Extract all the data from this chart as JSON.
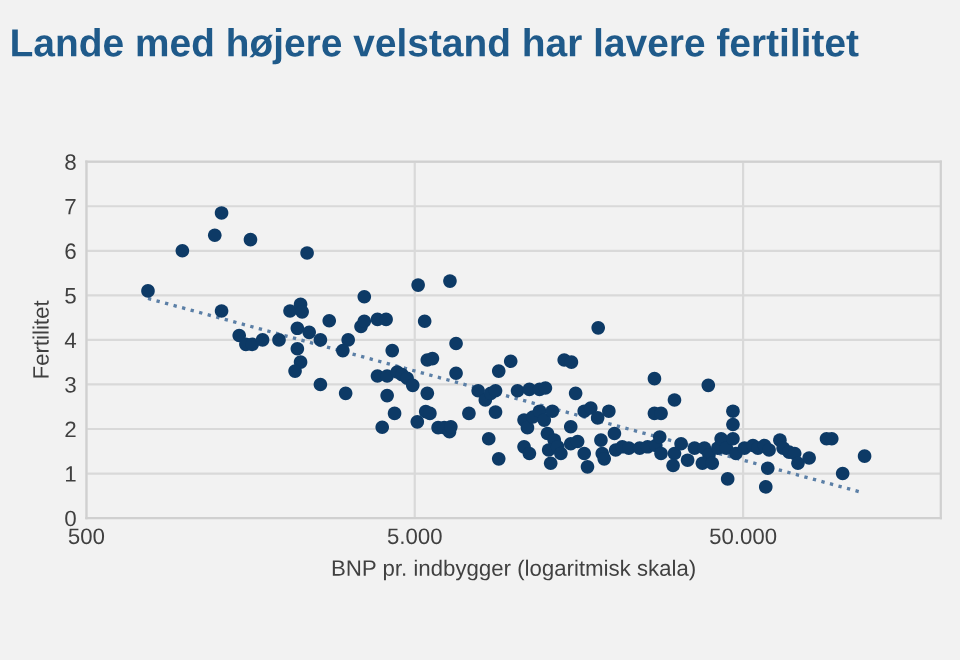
{
  "chart_data": {
    "type": "scatter",
    "title": "Lande med højere velstand har lavere fertilitet",
    "xlabel": "BNP pr. indbygger (logaritmisk skala)",
    "ylabel": "Fertilitet",
    "log": "x",
    "xlim": [
      500,
      200000
    ],
    "xticks": [
      500,
      {
        "value": 5000,
        "label": "5.000"
      },
      {
        "value": 50000,
        "label": "50.000"
      }
    ],
    "ylim": [
      0,
      8
    ],
    "yticks": [
      0,
      1,
      2,
      3,
      4,
      5,
      6,
      7,
      8
    ],
    "grid": true,
    "series": [
      {
        "color": "#0d3a66",
        "marker": "circle",
        "x": [
          770,
          980,
          1230,
          1290,
          1290,
          1580,
          1460,
          1530,
          1600,
          1720,
          1930,
          2350,
          2085,
          2245,
          2270,
          2195,
          2385,
          2195,
          2245,
          2160,
          2580,
          2580,
          2745,
          3135,
          3020,
          3080,
          3510,
          3430,
          3510,
          3850,
          4090,
          4270,
          3850,
          4120,
          4420,
          4570,
          4740,
          4930,
          4120,
          4340,
          3980,
          5090,
          5120,
          5360,
          6400,
          5460,
          5660,
          5460,
          5400,
          5560,
          5890,
          6150,
          6380,
          6440,
          6680,
          6680,
          7310,
          7800,
          8400,
          8200,
          8520,
          8810,
          8810,
          9010,
          9010,
          9800,
          10280,
          11170,
          12000,
          12500,
          10760,
          11020,
          10760,
          11170,
          11450,
          12000,
          12400,
          13120,
          12680,
          13300,
          12790,
          13620,
          12970,
          13930,
          14260,
          15000,
          15450,
          14930,
          14930,
          15670,
          16410,
          16790,
          16410,
          17180,
          18030,
          19500,
          18100,
          18450,
          18620,
          20280,
          20460,
          21430,
          22440,
          24210,
          25590,
          27100,
          18880,
          26850,
          26850,
          28120,
          30900,
          27860,
          28120,
          30900,
          30600,
          32360,
          33880,
          35560,
          38110,
          39360,
          41880,
          37580,
          40270,
          42860,
          44460,
          46560,
          47540,
          39170,
          46560,
          46560,
          44870,
          50470,
          53580,
          55460,
          58070,
          59980,
          64710,
          66220,
          69020,
          71780,
          59430,
          58610,
          73450,
          79430,
          89740,
          93110,
          100500,
          117200
        ],
        "values": [
          5.1,
          6.0,
          6.35,
          6.85,
          4.65,
          6.25,
          4.1,
          3.9,
          3.9,
          4.0,
          4.0,
          5.95,
          4.65,
          4.8,
          4.63,
          4.26,
          4.17,
          3.8,
          3.5,
          3.3,
          4.0,
          3.0,
          4.43,
          4.0,
          3.76,
          2.8,
          4.97,
          4.3,
          4.42,
          4.46,
          4.46,
          3.76,
          3.19,
          3.19,
          3.28,
          3.22,
          3.14,
          2.98,
          2.75,
          2.35,
          2.04,
          2.16,
          5.23,
          4.42,
          5.32,
          3.55,
          3.58,
          2.8,
          2.39,
          2.35,
          2.03,
          2.03,
          1.94,
          2.05,
          3.92,
          3.25,
          2.35,
          2.86,
          1.78,
          2.65,
          2.8,
          2.86,
          2.38,
          1.33,
          3.3,
          3.52,
          2.86,
          2.89,
          2.89,
          2.92,
          2.2,
          2.03,
          1.6,
          1.45,
          2.27,
          2.4,
          2.2,
          2.4,
          1.9,
          1.75,
          1.53,
          1.6,
          1.23,
          1.45,
          3.55,
          3.5,
          2.8,
          2.05,
          1.67,
          1.72,
          1.45,
          1.15,
          2.4,
          2.47,
          2.25,
          2.4,
          4.27,
          1.75,
          1.45,
          1.9,
          1.53,
          1.6,
          1.57,
          1.57,
          1.6,
          1.63,
          1.33,
          3.13,
          2.35,
          2.35,
          2.65,
          1.82,
          1.45,
          1.45,
          1.18,
          1.67,
          1.3,
          1.57,
          1.57,
          1.42,
          1.57,
          1.23,
          1.23,
          1.78,
          1.57,
          1.78,
          1.45,
          2.98,
          2.4,
          2.1,
          0.88,
          1.57,
          1.63,
          1.57,
          1.63,
          1.53,
          1.75,
          1.57,
          1.48,
          1.45,
          1.12,
          0.7,
          1.23,
          1.35,
          1.78,
          1.78,
          1.0,
          1.39
        ]
      },
      {
        "type": "line",
        "color": "#5b7fa6",
        "line_style": "dotted",
        "marker": "none",
        "x": [
          770,
          114600
        ],
        "values": [
          4.93,
          0.58
        ]
      }
    ]
  }
}
